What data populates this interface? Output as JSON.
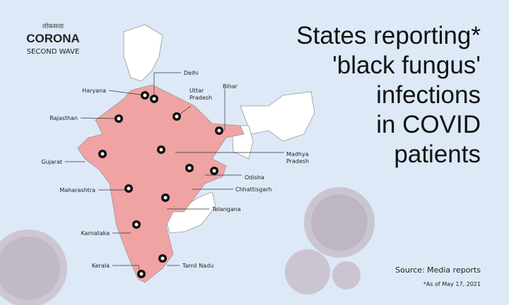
{
  "logo": {
    "publisher": "लोकसत्ता",
    "name": "CORONA",
    "tagline": "SECOND WAVE"
  },
  "title_lines": [
    "States reporting*",
    "'black fungus'",
    "infections",
    "in COVID",
    "patients"
  ],
  "states": [
    {
      "label_lines": [
        "Delhi"
      ]
    },
    {
      "label_lines": [
        "Haryana"
      ]
    },
    {
      "label_lines": [
        "Uttar",
        "Pradesh"
      ]
    },
    {
      "label_lines": [
        "Bihar"
      ]
    },
    {
      "label_lines": [
        "Rajasthan"
      ]
    },
    {
      "label_lines": [
        "Gujarat"
      ]
    },
    {
      "label_lines": [
        "Madhya",
        "Pradesh"
      ]
    },
    {
      "label_lines": [
        "Odisha"
      ]
    },
    {
      "label_lines": [
        "Maharashtra"
      ]
    },
    {
      "label_lines": [
        "Chhattisgarh"
      ]
    },
    {
      "label_lines": [
        "Telangana"
      ]
    },
    {
      "label_lines": [
        "Karnataka"
      ]
    },
    {
      "label_lines": [
        "Kerala"
      ]
    },
    {
      "label_lines": [
        "Tamil Nadu"
      ]
    }
  ],
  "source": "Source: Media reports",
  "note": "*As of May 17, 2021"
}
